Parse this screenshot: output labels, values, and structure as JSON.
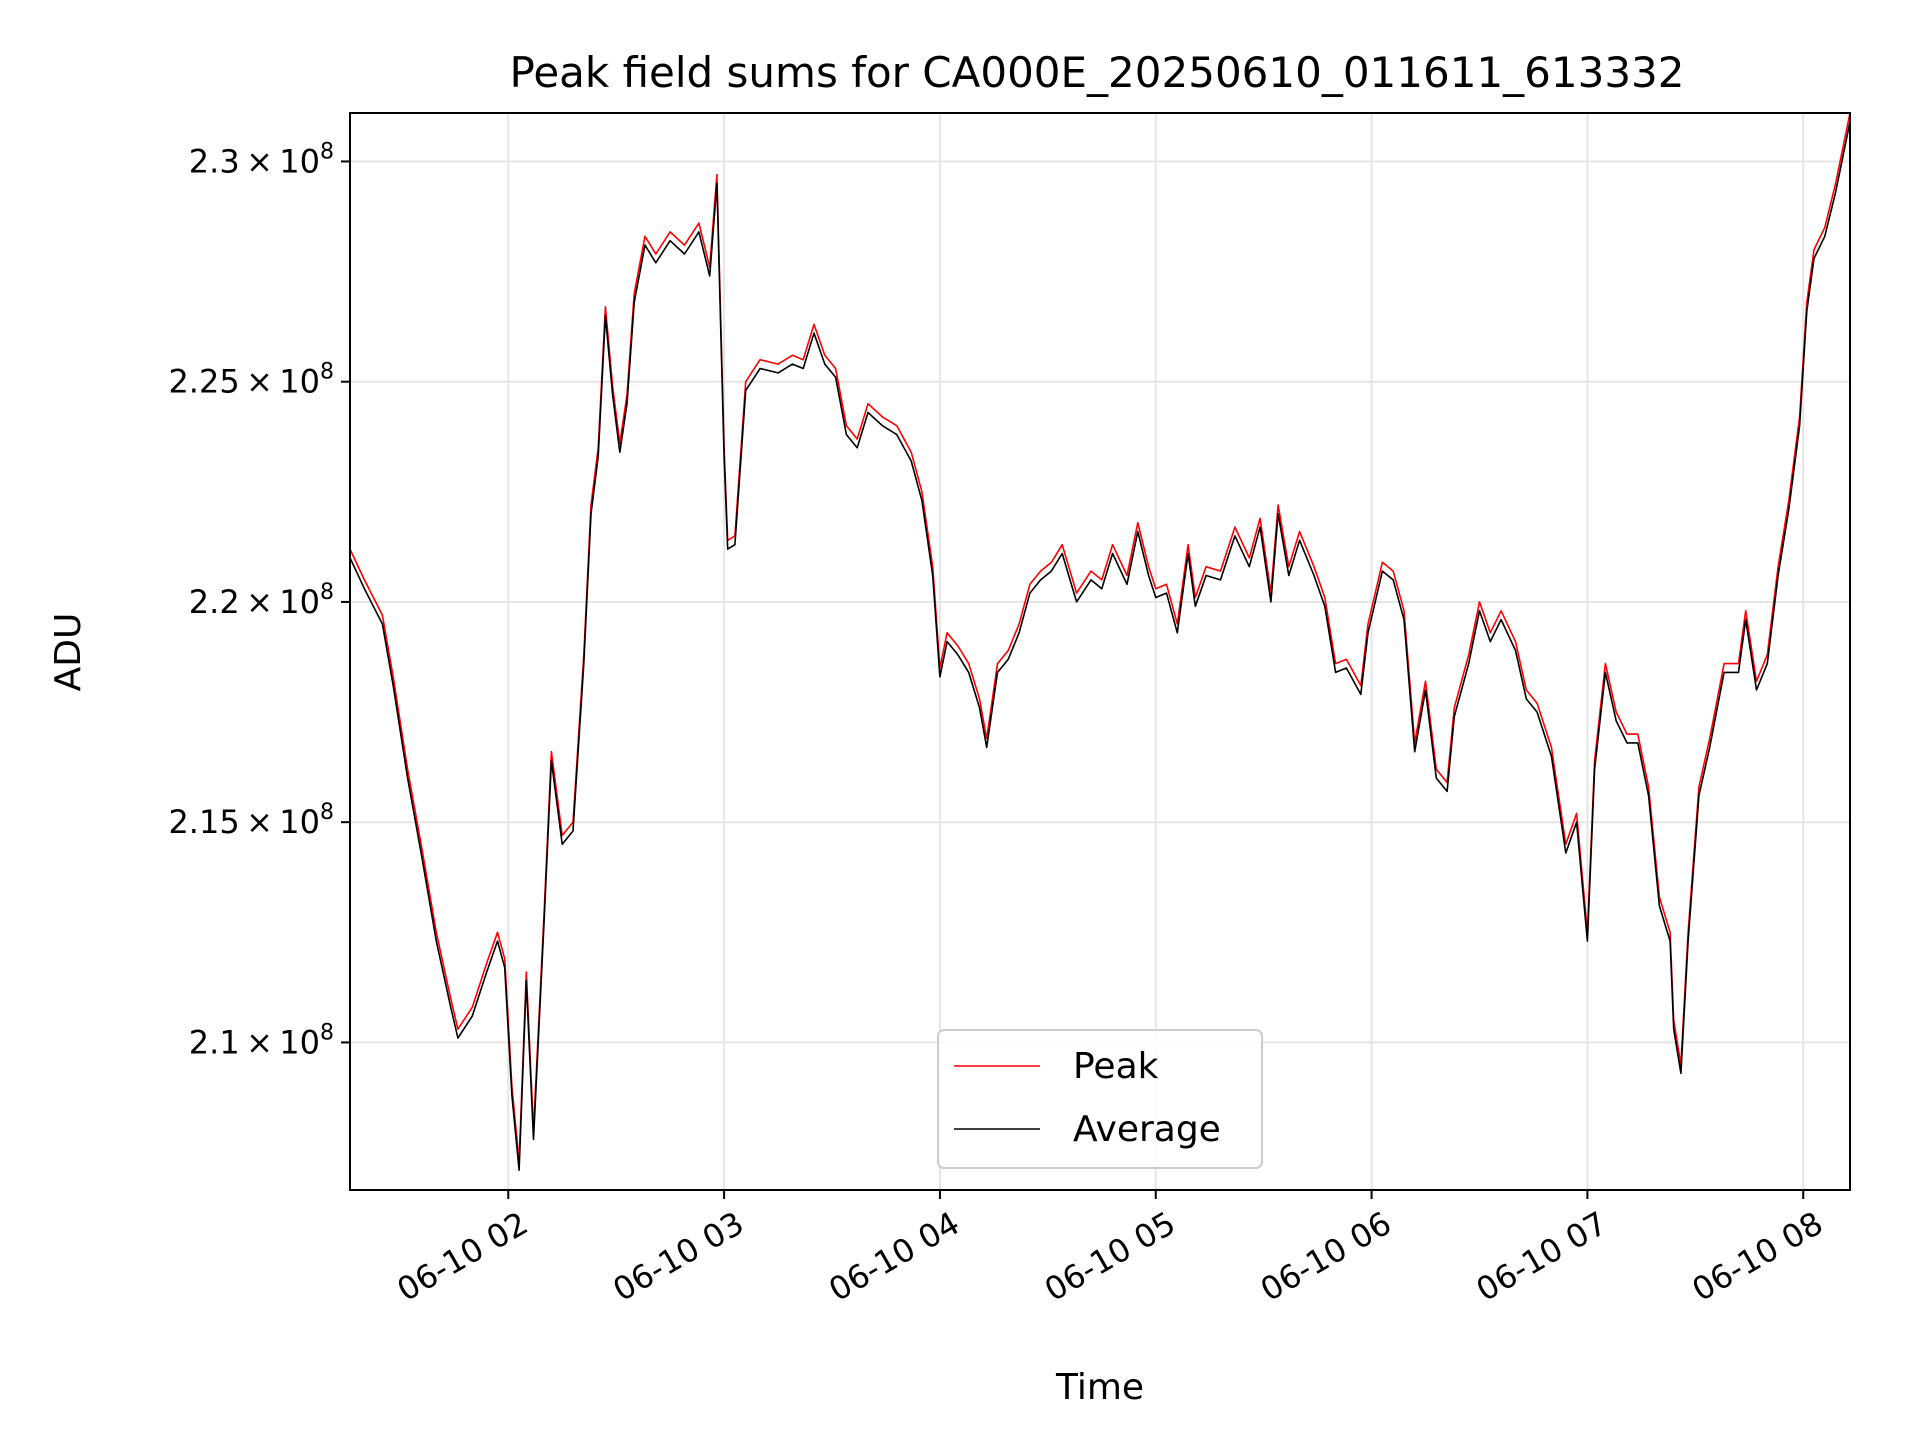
{
  "chart_data": {
    "type": "line",
    "title": "Peak field sums for CA000E_20250610_011611_613332",
    "xlabel": "Time",
    "ylabel": "ADU",
    "x_axis": "time",
    "x_range": [
      "2025-06-10 01:16",
      "2025-06-10 08:13"
    ],
    "y_range": [
      206650000,
      231100000
    ],
    "x_ticks": [
      "06-10 02",
      "06-10 03",
      "06-10 04",
      "06-10 05",
      "06-10 06",
      "06-10 07",
      "06-10 08"
    ],
    "x_tick_times": [
      "2025-06-10 02:00",
      "2025-06-10 03:00",
      "2025-06-10 04:00",
      "2025-06-10 05:00",
      "2025-06-10 06:00",
      "2025-06-10 07:00",
      "2025-06-10 08:00"
    ],
    "y_ticks": [
      {
        "value": 210000000,
        "mantissa": "2.1",
        "exponent": "8"
      },
      {
        "value": 215000000,
        "mantissa": "2.15",
        "exponent": "8"
      },
      {
        "value": 220000000,
        "mantissa": "2.2",
        "exponent": "8"
      },
      {
        "value": 225000000,
        "mantissa": "2.25",
        "exponent": "8"
      },
      {
        "value": 230000000,
        "mantissa": "2.3",
        "exponent": "8"
      }
    ],
    "grid": true,
    "legend_position": "bottom-center",
    "x": [
      "2025-06-10 01:16",
      "2025-06-10 01:20",
      "2025-06-10 01:25",
      "2025-06-10 01:28",
      "2025-06-10 01:32",
      "2025-06-10 01:36",
      "2025-06-10 01:40",
      "2025-06-10 01:44",
      "2025-06-10 01:46",
      "2025-06-10 01:50",
      "2025-06-10 01:54",
      "2025-06-10 01:57",
      "2025-06-10 01:59",
      "2025-06-10 02:01",
      "2025-06-10 02:03",
      "2025-06-10 02:05",
      "2025-06-10 02:07",
      "2025-06-10 02:10",
      "2025-06-10 02:12",
      "2025-06-10 02:15",
      "2025-06-10 02:18",
      "2025-06-10 02:21",
      "2025-06-10 02:23",
      "2025-06-10 02:25",
      "2025-06-10 02:27",
      "2025-06-10 02:29",
      "2025-06-10 02:31",
      "2025-06-10 02:33",
      "2025-06-10 02:35",
      "2025-06-10 02:38",
      "2025-06-10 02:41",
      "2025-06-10 02:45",
      "2025-06-10 02:49",
      "2025-06-10 02:53",
      "2025-06-10 02:56",
      "2025-06-10 02:58",
      "2025-06-10 03:00",
      "2025-06-10 03:01",
      "2025-06-10 03:03",
      "2025-06-10 03:06",
      "2025-06-10 03:10",
      "2025-06-10 03:15",
      "2025-06-10 03:19",
      "2025-06-10 03:22",
      "2025-06-10 03:25",
      "2025-06-10 03:28",
      "2025-06-10 03:31",
      "2025-06-10 03:34",
      "2025-06-10 03:37",
      "2025-06-10 03:40",
      "2025-06-10 03:44",
      "2025-06-10 03:48",
      "2025-06-10 03:52",
      "2025-06-10 03:55",
      "2025-06-10 03:58",
      "2025-06-10 04:00",
      "2025-06-10 04:02",
      "2025-06-10 04:05",
      "2025-06-10 04:08",
      "2025-06-10 04:11",
      "2025-06-10 04:13",
      "2025-06-10 04:16",
      "2025-06-10 04:19",
      "2025-06-10 04:22",
      "2025-06-10 04:25",
      "2025-06-10 04:28",
      "2025-06-10 04:31",
      "2025-06-10 04:34",
      "2025-06-10 04:38",
      "2025-06-10 04:42",
      "2025-06-10 04:45",
      "2025-06-10 04:48",
      "2025-06-10 04:52",
      "2025-06-10 04:55",
      "2025-06-10 04:58",
      "2025-06-10 05:00",
      "2025-06-10 05:03",
      "2025-06-10 05:06",
      "2025-06-10 05:09",
      "2025-06-10 05:11",
      "2025-06-10 05:14",
      "2025-06-10 05:18",
      "2025-06-10 05:22",
      "2025-06-10 05:26",
      "2025-06-10 05:29",
      "2025-06-10 05:32",
      "2025-06-10 05:34",
      "2025-06-10 05:37",
      "2025-06-10 05:40",
      "2025-06-10 05:44",
      "2025-06-10 05:47",
      "2025-06-10 05:50",
      "2025-06-10 05:53",
      "2025-06-10 05:57",
      "2025-06-10 05:59",
      "2025-06-10 06:03",
      "2025-06-10 06:06",
      "2025-06-10 06:09",
      "2025-06-10 06:12",
      "2025-06-10 06:15",
      "2025-06-10 06:18",
      "2025-06-10 06:21",
      "2025-06-10 06:23",
      "2025-06-10 06:27",
      "2025-06-10 06:30",
      "2025-06-10 06:33",
      "2025-06-10 06:36",
      "2025-06-10 06:40",
      "2025-06-10 06:43",
      "2025-06-10 06:46",
      "2025-06-10 06:50",
      "2025-06-10 06:54",
      "2025-06-10 06:57",
      "2025-06-10 07:00",
      "2025-06-10 07:02",
      "2025-06-10 07:05",
      "2025-06-10 07:08",
      "2025-06-10 07:11",
      "2025-06-10 07:14",
      "2025-06-10 07:17",
      "2025-06-10 07:20",
      "2025-06-10 07:23",
      "2025-06-10 07:24",
      "2025-06-10 07:26",
      "2025-06-10 07:28",
      "2025-06-10 07:31",
      "2025-06-10 07:34",
      "2025-06-10 07:38",
      "2025-06-10 07:42",
      "2025-06-10 07:44",
      "2025-06-10 07:47",
      "2025-06-10 07:50",
      "2025-06-10 07:53",
      "2025-06-10 07:56",
      "2025-06-10 07:59",
      "2025-06-10 08:01",
      "2025-06-10 08:03",
      "2025-06-10 08:06",
      "2025-06-10 08:09",
      "2025-06-10 08:13"
    ],
    "series": [
      {
        "name": "Peak",
        "color": "#ff0000",
        "values": [
          221200000,
          220500000,
          219700000,
          218300000,
          216200000,
          214400000,
          212500000,
          211000000,
          210300000,
          210800000,
          211800000,
          212500000,
          211900000,
          209000000,
          207300000,
          211600000,
          208000000,
          213000000,
          216600000,
          214700000,
          215000000,
          218800000,
          222200000,
          223500000,
          226700000,
          224900000,
          223600000,
          224700000,
          227000000,
          228300000,
          227900000,
          228400000,
          228100000,
          228600000,
          227600000,
          229700000,
          223500000,
          221400000,
          221500000,
          225000000,
          225500000,
          225400000,
          225600000,
          225500000,
          226300000,
          225600000,
          225300000,
          224000000,
          223700000,
          224500000,
          224200000,
          224000000,
          223400000,
          222500000,
          220800000,
          218500000,
          219300000,
          219000000,
          218600000,
          217800000,
          216900000,
          218600000,
          218900000,
          219500000,
          220400000,
          220700000,
          220900000,
          221300000,
          220200000,
          220700000,
          220500000,
          221300000,
          220600000,
          221800000,
          220800000,
          220300000,
          220400000,
          219500000,
          221300000,
          220100000,
          220800000,
          220700000,
          221700000,
          221000000,
          221900000,
          220200000,
          222200000,
          220800000,
          221600000,
          220800000,
          220100000,
          218600000,
          218700000,
          218100000,
          219500000,
          220900000,
          220700000,
          219800000,
          216800000,
          218200000,
          216200000,
          215900000,
          217600000,
          218800000,
          220000000,
          219300000,
          219800000,
          219100000,
          218000000,
          217700000,
          216700000,
          214500000,
          215200000,
          212500000,
          216400000,
          218600000,
          217500000,
          217000000,
          217000000,
          215800000,
          213300000,
          212500000,
          210500000,
          209500000,
          212500000,
          215800000,
          216900000,
          218600000,
          218600000,
          219800000,
          218200000,
          218800000,
          220800000,
          222300000,
          224200000,
          226800000,
          228000000,
          228500000,
          229500000,
          231100000
        ]
      },
      {
        "name": "Average",
        "color": "#000000",
        "values": [
          221000000,
          220300000,
          219500000,
          218100000,
          216000000,
          214200000,
          212300000,
          210800000,
          210100000,
          210600000,
          211600000,
          212300000,
          211700000,
          208800000,
          207100000,
          211400000,
          207800000,
          212800000,
          216400000,
          214500000,
          214800000,
          218600000,
          222000000,
          223300000,
          226500000,
          224700000,
          223400000,
          224500000,
          226800000,
          228100000,
          227700000,
          228200000,
          227900000,
          228400000,
          227400000,
          229500000,
          223300000,
          221200000,
          221300000,
          224800000,
          225300000,
          225200000,
          225400000,
          225300000,
          226100000,
          225400000,
          225100000,
          223800000,
          223500000,
          224300000,
          224000000,
          223800000,
          223200000,
          222300000,
          220600000,
          218300000,
          219100000,
          218800000,
          218400000,
          217600000,
          216700000,
          218400000,
          218700000,
          219300000,
          220200000,
          220500000,
          220700000,
          221100000,
          220000000,
          220500000,
          220300000,
          221100000,
          220400000,
          221600000,
          220600000,
          220100000,
          220200000,
          219300000,
          221100000,
          219900000,
          220600000,
          220500000,
          221500000,
          220800000,
          221700000,
          220000000,
          222000000,
          220600000,
          221400000,
          220600000,
          219900000,
          218400000,
          218500000,
          217900000,
          219300000,
          220700000,
          220500000,
          219600000,
          216600000,
          218000000,
          216000000,
          215700000,
          217400000,
          218600000,
          219800000,
          219100000,
          219600000,
          218900000,
          217800000,
          217500000,
          216500000,
          214300000,
          215000000,
          212300000,
          216200000,
          218400000,
          217300000,
          216800000,
          216800000,
          215600000,
          213100000,
          212300000,
          210300000,
          209300000,
          212300000,
          215600000,
          216700000,
          218400000,
          218400000,
          219600000,
          218000000,
          218600000,
          220600000,
          222100000,
          224000000,
          226600000,
          227800000,
          228300000,
          229300000,
          230900000
        ]
      }
    ]
  }
}
